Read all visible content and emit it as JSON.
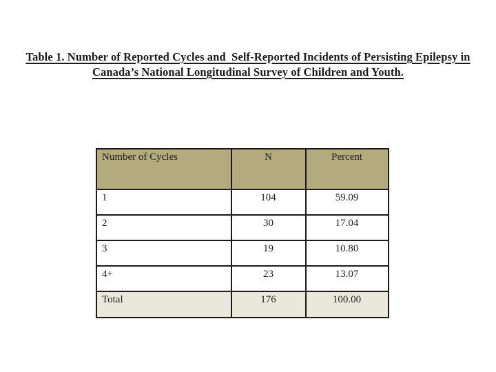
{
  "page": {
    "background": "#ffffff",
    "kind": "document-table-slide"
  },
  "title": {
    "line1": "Table 1. Number of Reported Cycles and  Self-Reported Incidents of Persisting Epilepsy in",
    "line2": "Canada’s National Longitudinal Survey of Children and Youth."
  },
  "table": {
    "columns": [
      "Number of Cycles",
      "N",
      "Percent"
    ],
    "rows": [
      {
        "cycles": "1",
        "n": "104",
        "percent": "59.09"
      },
      {
        "cycles": "2",
        "n": "30",
        "percent": "17.04"
      },
      {
        "cycles": "3",
        "n": "19",
        "percent": "10.80"
      },
      {
        "cycles": "4+",
        "n": "23",
        "percent": "13.07"
      }
    ],
    "total_row": {
      "cycles": "Total",
      "n": "176",
      "percent": "100.00"
    },
    "colors": {
      "header_bg": "#b3ab7d",
      "total_row_bg": "#eae8db",
      "border": "#1a1a1a",
      "text": "#1f1f1f"
    }
  }
}
